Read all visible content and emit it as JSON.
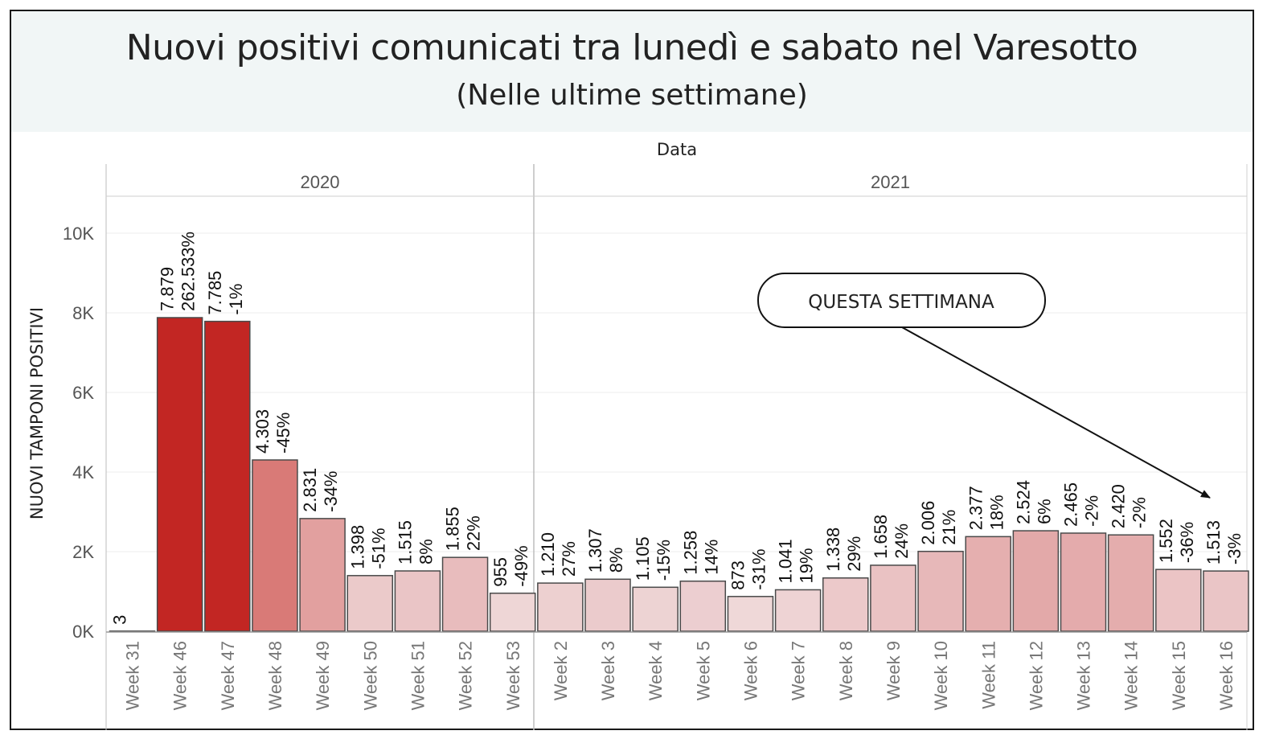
{
  "title": "Nuovi positivi comunicati tra lunedì e sabato nel Varesotto",
  "subtitle": "(Nelle ultime settimane)",
  "annotation": "QUESTA SETTIMANA",
  "chart_data": {
    "type": "bar",
    "title": "Nuovi positivi comunicati tra lunedì e sabato nel Varesotto",
    "subtitle": "(Nelle ultime settimane)",
    "column_header": "Data",
    "ylabel": "NUOVI TAMPONI POSITIVI",
    "ylim": [
      0,
      11000
    ],
    "yticks": [
      {
        "value": 0,
        "label": "0K"
      },
      {
        "value": 2000,
        "label": "2K"
      },
      {
        "value": 4000,
        "label": "4K"
      },
      {
        "value": 6000,
        "label": "6K"
      },
      {
        "value": 8000,
        "label": "8K"
      },
      {
        "value": 10000,
        "label": "10K"
      }
    ],
    "grid": true,
    "panels": [
      {
        "year": "2020",
        "categories": [
          "Week 31",
          "Week 46",
          "Week 47",
          "Week 48",
          "Week 49",
          "Week 50",
          "Week 51",
          "Week 52",
          "Week 53"
        ]
      },
      {
        "year": "2021",
        "categories": [
          "Week 2",
          "Week 3",
          "Week 4",
          "Week 5",
          "Week 6",
          "Week 7",
          "Week 8",
          "Week 9",
          "Week 10",
          "Week 11",
          "Week 12",
          "Week 13",
          "Week 14",
          "Week 15",
          "Week 16"
        ]
      }
    ],
    "bars": [
      {
        "week": "Week 31",
        "value": 3,
        "label": "3",
        "pct": "",
        "color": "#e8c9cb"
      },
      {
        "week": "Week 46",
        "value": 7879,
        "label": "7.879",
        "pct": "262.533%",
        "color": "#c22623"
      },
      {
        "week": "Week 47",
        "value": 7785,
        "label": "7.785",
        "pct": "-1%",
        "color": "#c22623"
      },
      {
        "week": "Week 48",
        "value": 4303,
        "label": "4.303",
        "pct": "-45%",
        "color": "#d97a77"
      },
      {
        "week": "Week 49",
        "value": 2831,
        "label": "2.831",
        "pct": "-34%",
        "color": "#e2a09f"
      },
      {
        "week": "Week 50",
        "value": 1398,
        "label": "1.398",
        "pct": "-51%",
        "color": "#ebcaca"
      },
      {
        "week": "Week 51",
        "value": 1515,
        "label": "1.515",
        "pct": "8%",
        "color": "#eac5c6"
      },
      {
        "week": "Week 52",
        "value": 1855,
        "label": "1.855",
        "pct": "22%",
        "color": "#e8bcbd"
      },
      {
        "week": "Week 53",
        "value": 955,
        "label": "955",
        "pct": "-49%",
        "color": "#eed6d6"
      },
      {
        "week": "Week 2",
        "value": 1210,
        "label": "1.210",
        "pct": "27%",
        "color": "#edd0d0"
      },
      {
        "week": "Week 3",
        "value": 1307,
        "label": "1.307",
        "pct": "8%",
        "color": "#ebcbcc"
      },
      {
        "week": "Week 4",
        "value": 1105,
        "label": "1.105",
        "pct": "-15%",
        "color": "#edd3d3"
      },
      {
        "week": "Week 5",
        "value": 1258,
        "label": "1.258",
        "pct": "14%",
        "color": "#ecced0"
      },
      {
        "week": "Week 6",
        "value": 873,
        "label": "873",
        "pct": "-31%",
        "color": "#efd8d8"
      },
      {
        "week": "Week 7",
        "value": 1041,
        "label": "1.041",
        "pct": "19%",
        "color": "#eed3d4"
      },
      {
        "week": "Week 8",
        "value": 1338,
        "label": "1.338",
        "pct": "29%",
        "color": "#ecc9ca"
      },
      {
        "week": "Week 9",
        "value": 1658,
        "label": "1.658",
        "pct": "24%",
        "color": "#eac2c3"
      },
      {
        "week": "Week 10",
        "value": 2006,
        "label": "2.006",
        "pct": "21%",
        "color": "#e7b8b9"
      },
      {
        "week": "Week 11",
        "value": 2377,
        "label": "2.377",
        "pct": "18%",
        "color": "#e5afaf"
      },
      {
        "week": "Week 12",
        "value": 2524,
        "label": "2.524",
        "pct": "6%",
        "color": "#e3a9a9"
      },
      {
        "week": "Week 13",
        "value": 2465,
        "label": "2.465",
        "pct": "-2%",
        "color": "#e4abac"
      },
      {
        "week": "Week 14",
        "value": 2420,
        "label": "2.420",
        "pct": "-2%",
        "color": "#e4adad"
      },
      {
        "week": "Week 15",
        "value": 1552,
        "label": "1.552",
        "pct": "-36%",
        "color": "#ebc4c5"
      },
      {
        "week": "Week 16",
        "value": 1513,
        "label": "1.513",
        "pct": "-3%",
        "color": "#eac5c6"
      }
    ]
  }
}
